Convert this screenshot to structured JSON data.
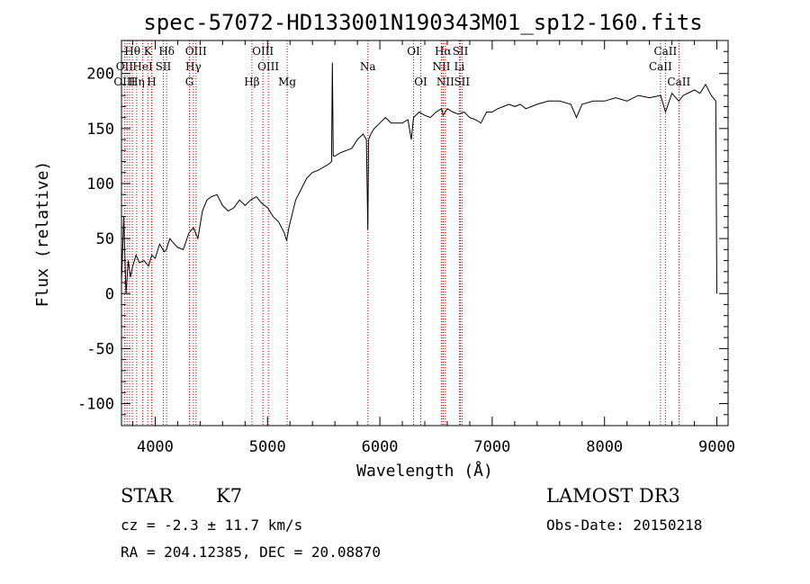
{
  "chart_data": {
    "type": "line",
    "title": "spec-57072-HD133001N190343M01_sp12-160.fits",
    "xlabel": "Wavelength (Å)",
    "ylabel": "Flux (relative)",
    "xlim": [
      3700,
      9100
    ],
    "ylim": [
      -120,
      230
    ],
    "x_ticks": [
      4000,
      5000,
      6000,
      7000,
      8000,
      9000
    ],
    "y_ticks": [
      -100,
      -50,
      0,
      50,
      100,
      150,
      200
    ],
    "grid": false,
    "series": [
      {
        "x": [
          3700,
          3720,
          3740,
          3760,
          3780,
          3800,
          3830,
          3860,
          3900,
          3940,
          3970,
          4000,
          4040,
          4080,
          4100,
          4130,
          4170,
          4200,
          4250,
          4300,
          4340,
          4380,
          4420,
          4460,
          4500,
          4550,
          4600,
          4650,
          4700,
          4750,
          4800,
          4850,
          4900,
          4950,
          5000,
          5050,
          5100,
          5150,
          5170,
          5190,
          5250,
          5300,
          5350,
          5400,
          5450,
          5500,
          5550,
          5570,
          5577,
          5585,
          5600,
          5650,
          5700,
          5750,
          5800,
          5850,
          5880,
          5893,
          5900,
          5920,
          5950,
          6000,
          6050,
          6100,
          6150,
          6200,
          6250,
          6280,
          6300,
          6350,
          6400,
          6450,
          6500,
          6550,
          6563,
          6600,
          6650,
          6700,
          6750,
          6800,
          6850,
          6900,
          6950,
          7000,
          7050,
          7100,
          7150,
          7200,
          7250,
          7300,
          7350,
          7400,
          7500,
          7600,
          7700,
          7750,
          7800,
          7900,
          8000,
          8100,
          8200,
          8300,
          8400,
          8500,
          8542,
          8600,
          8662,
          8700,
          8800,
          8850,
          8900,
          8950,
          8990,
          9000
        ],
        "y": [
          10,
          70,
          0,
          30,
          15,
          25,
          35,
          28,
          30,
          25,
          35,
          32,
          45,
          38,
          40,
          50,
          45,
          42,
          40,
          55,
          60,
          50,
          75,
          85,
          88,
          90,
          80,
          75,
          78,
          85,
          80,
          85,
          88,
          82,
          78,
          70,
          65,
          55,
          48,
          60,
          85,
          95,
          105,
          110,
          112,
          115,
          118,
          120,
          210,
          125,
          125,
          128,
          130,
          132,
          140,
          145,
          140,
          58,
          140,
          145,
          150,
          155,
          160,
          155,
          155,
          155,
          158,
          140,
          160,
          165,
          162,
          160,
          165,
          168,
          162,
          168,
          165,
          163,
          165,
          160,
          158,
          155,
          165,
          165,
          168,
          170,
          172,
          170,
          172,
          168,
          170,
          172,
          175,
          175,
          172,
          160,
          172,
          175,
          175,
          178,
          175,
          180,
          178,
          180,
          165,
          182,
          175,
          180,
          185,
          182,
          190,
          180,
          175,
          0
        ]
      }
    ],
    "line_markers": [
      {
        "label": "Hθ",
        "wavelength": 3797,
        "row": 0
      },
      {
        "label": "K",
        "wavelength": 3934,
        "row": 0
      },
      {
        "label": "Hδ",
        "wavelength": 4102,
        "row": 0
      },
      {
        "label": "OIII",
        "wavelength": 4363,
        "row": 0
      },
      {
        "label": "OIII",
        "wavelength": 4959,
        "row": 0
      },
      {
        "label": "OI",
        "wavelength": 6300,
        "row": 0
      },
      {
        "label": "Hα",
        "wavelength": 6563,
        "row": 0
      },
      {
        "label": "SII",
        "wavelength": 6717,
        "row": 0
      },
      {
        "label": "CaII",
        "wavelength": 8542,
        "row": 0
      },
      {
        "label": "OII",
        "wavelength": 3727,
        "row": 1
      },
      {
        "label": "HeI",
        "wavelength": 3889,
        "row": 1
      },
      {
        "label": "SII",
        "wavelength": 4072,
        "row": 1
      },
      {
        "label": "Hγ",
        "wavelength": 4340,
        "row": 1
      },
      {
        "label": "OIII",
        "wavelength": 5007,
        "row": 1
      },
      {
        "label": "Na",
        "wavelength": 5893,
        "row": 1
      },
      {
        "label": "NII",
        "wavelength": 6548,
        "row": 1
      },
      {
        "label": "Li",
        "wavelength": 6708,
        "row": 1
      },
      {
        "label": "CaII",
        "wavelength": 8498,
        "row": 1
      },
      {
        "label": "OIII",
        "wavelength": 3727,
        "row": 2
      },
      {
        "label": "Hη",
        "wavelength": 3835,
        "row": 2
      },
      {
        "label": "H",
        "wavelength": 3968,
        "row": 2
      },
      {
        "label": "G",
        "wavelength": 4305,
        "row": 2
      },
      {
        "label": "Hβ",
        "wavelength": 4861,
        "row": 2
      },
      {
        "label": "Mg",
        "wavelength": 5175,
        "row": 2
      },
      {
        "label": "OI",
        "wavelength": 6364,
        "row": 2
      },
      {
        "label": "NII",
        "wavelength": 6583,
        "row": 2
      },
      {
        "label": "SII",
        "wavelength": 6731,
        "row": 2
      },
      {
        "label": "CaII",
        "wavelength": 8662,
        "row": 2
      }
    ],
    "marker_wavelengths": [
      3727,
      3750,
      3771,
      3797,
      3835,
      3889,
      3934,
      3968,
      4072,
      4102,
      4305,
      4340,
      4363,
      4861,
      4959,
      5007,
      5175,
      5893,
      6300,
      6364,
      6548,
      6563,
      6583,
      6708,
      6717,
      6731,
      8498,
      8542,
      8662
    ],
    "colors": {
      "spectrum": "#000000",
      "marker": "#cc0000",
      "axes": "#000000"
    }
  },
  "info": {
    "object_type": "STAR",
    "subclass": "K7",
    "velocity": "cz = -2.3 ± 11.7 km/s",
    "coordinates": "RA = 204.12385, DEC =  20.08870",
    "survey": "LAMOST DR3",
    "obs_date": "Obs-Date: 20150218"
  }
}
